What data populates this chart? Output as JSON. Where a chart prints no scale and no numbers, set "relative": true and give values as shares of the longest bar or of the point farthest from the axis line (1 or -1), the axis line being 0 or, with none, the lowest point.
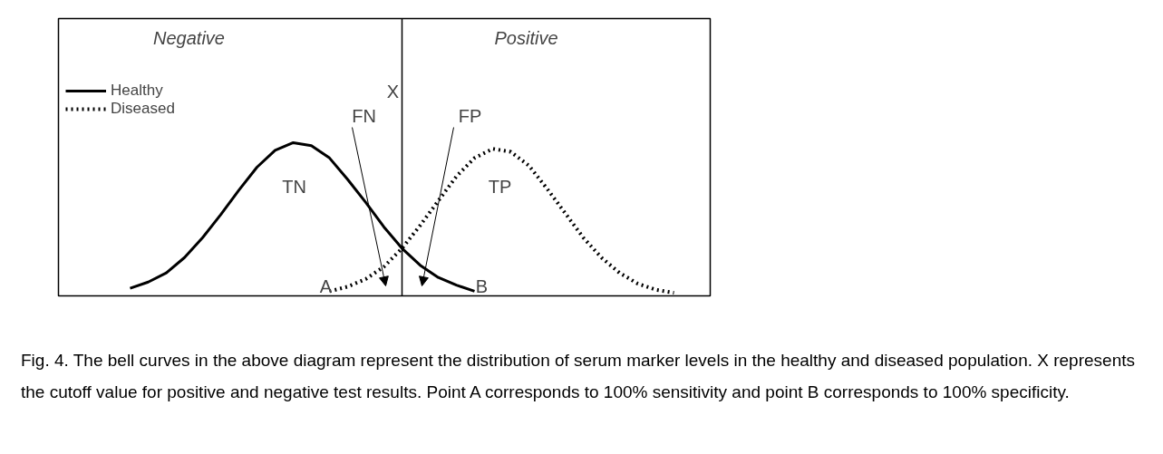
{
  "chart_data": {
    "type": "line",
    "relative": true,
    "grid": false,
    "legend": "top left",
    "tick_labels": false,
    "marker": "none",
    "categories": [
      null,
      null,
      null,
      null,
      null,
      null,
      null,
      null,
      null,
      null,
      null,
      null,
      null,
      null,
      null,
      null,
      null,
      null,
      null,
      null,
      null,
      null,
      null,
      null,
      null,
      null,
      null,
      null,
      null,
      null,
      null
    ],
    "series": [
      {
        "name": "Healthy",
        "color": "#000000",
        "line_style": "solid",
        "values": [
          0.05,
          0.09,
          0.15,
          0.25,
          0.38,
          0.53,
          0.69,
          0.84,
          0.95,
          1.0,
          0.98,
          0.9,
          0.76,
          0.61,
          0.45,
          0.31,
          0.2,
          0.12,
          0.07,
          0.03,
          null,
          null,
          null,
          null,
          null,
          null,
          null,
          null,
          null,
          null,
          null
        ]
      },
      {
        "name": "Diseased",
        "color": "#000000",
        "line_style": "dotted",
        "values": [
          null,
          null,
          null,
          null,
          null,
          null,
          null,
          null,
          null,
          null,
          null,
          0.03,
          0.06,
          0.11,
          0.19,
          0.31,
          0.46,
          0.62,
          0.78,
          0.9,
          0.96,
          0.94,
          0.85,
          0.7,
          0.54,
          0.38,
          0.25,
          0.15,
          0.08,
          0.04,
          0.02
        ]
      }
    ],
    "annotations": [
      "Negative",
      "Positive",
      "TN",
      "TP",
      "FN",
      "FP",
      "A",
      "B",
      "X",
      "Fig. 4. The bell curves in the above diagram represent the distribution of serum marker levels in the healthy and diseased population.  X represents the cutoff value for positive and negative test results.  Point A corresponds to 100% sensitivity and point B corresponds to 100% specificity."
    ]
  }
}
